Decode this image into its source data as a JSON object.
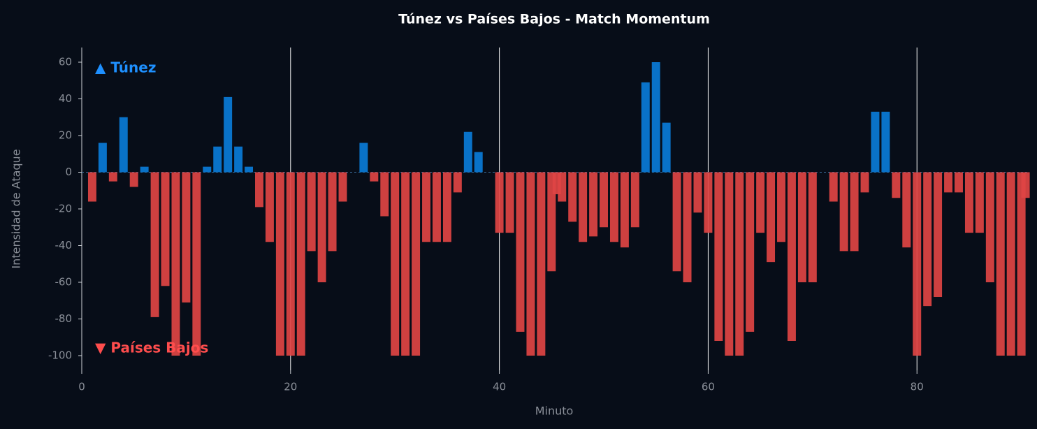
{
  "chart_data": {
    "type": "bar",
    "title": "Túnez vs Países Bajos - Match Momentum",
    "x_label": "Minuto",
    "y_label": "Intensidad de Ataque",
    "x": [
      1,
      2,
      3,
      4,
      5,
      6,
      7,
      8,
      9,
      10,
      11,
      12,
      13,
      14,
      15,
      16,
      17,
      18,
      19,
      20,
      21,
      22,
      23,
      24,
      25,
      26,
      27,
      28,
      29,
      30,
      31,
      32,
      33,
      34,
      35,
      36,
      37,
      38,
      39,
      40,
      41,
      42,
      43,
      44,
      45,
      45.5,
      46,
      47,
      48,
      49,
      50,
      51,
      52,
      53,
      54,
      55,
      56,
      57,
      58,
      59,
      60,
      61,
      62,
      63,
      64,
      65,
      66,
      67,
      68,
      69,
      70,
      71,
      72,
      73,
      74,
      75,
      76,
      77,
      78,
      79,
      80,
      81,
      82,
      83,
      84,
      85,
      86,
      87,
      88,
      89,
      90,
      90.4
    ],
    "values": [
      -16,
      16,
      -5,
      30,
      -8,
      3,
      -79,
      -62,
      -100,
      -71,
      -100,
      3,
      14,
      41,
      14,
      3,
      -19,
      -38,
      -100,
      -100,
      -100,
      -43,
      -60,
      -43,
      -16,
      0,
      16,
      -5,
      -24,
      -100,
      -100,
      -100,
      -38,
      -38,
      -38,
      -11,
      22,
      11,
      0,
      -33,
      -33,
      -87,
      -100,
      -100,
      -54,
      -12,
      -16,
      -27,
      -38,
      -35,
      -30,
      -38,
      -41,
      -30,
      49,
      60,
      27,
      -54,
      -60,
      -22,
      -33,
      -92,
      -100,
      -100,
      -87,
      -33,
      -49,
      -38,
      -92,
      -60,
      -60,
      0,
      -16,
      -43,
      -43,
      -11,
      33,
      33,
      -14,
      -41,
      -100,
      -73,
      -68,
      -11,
      -11,
      -33,
      -33,
      -60,
      -100,
      -100,
      -100,
      -14
    ],
    "positive_color": "#0a7bd8",
    "negative_color": "#e04444",
    "annotations": [
      {
        "text": "▲ Túnez",
        "color": "#1e90ff"
      },
      {
        "text": "▼ Países Bajos",
        "color": "#ff4d4d"
      }
    ],
    "xlim": [
      0,
      90.6
    ],
    "ylim": [
      -108,
      68
    ],
    "xticks": [
      0,
      20,
      40,
      60,
      80
    ],
    "yticks": [
      -100,
      -80,
      -60,
      -40,
      -20,
      0,
      20,
      40,
      60
    ],
    "grid": "x"
  }
}
